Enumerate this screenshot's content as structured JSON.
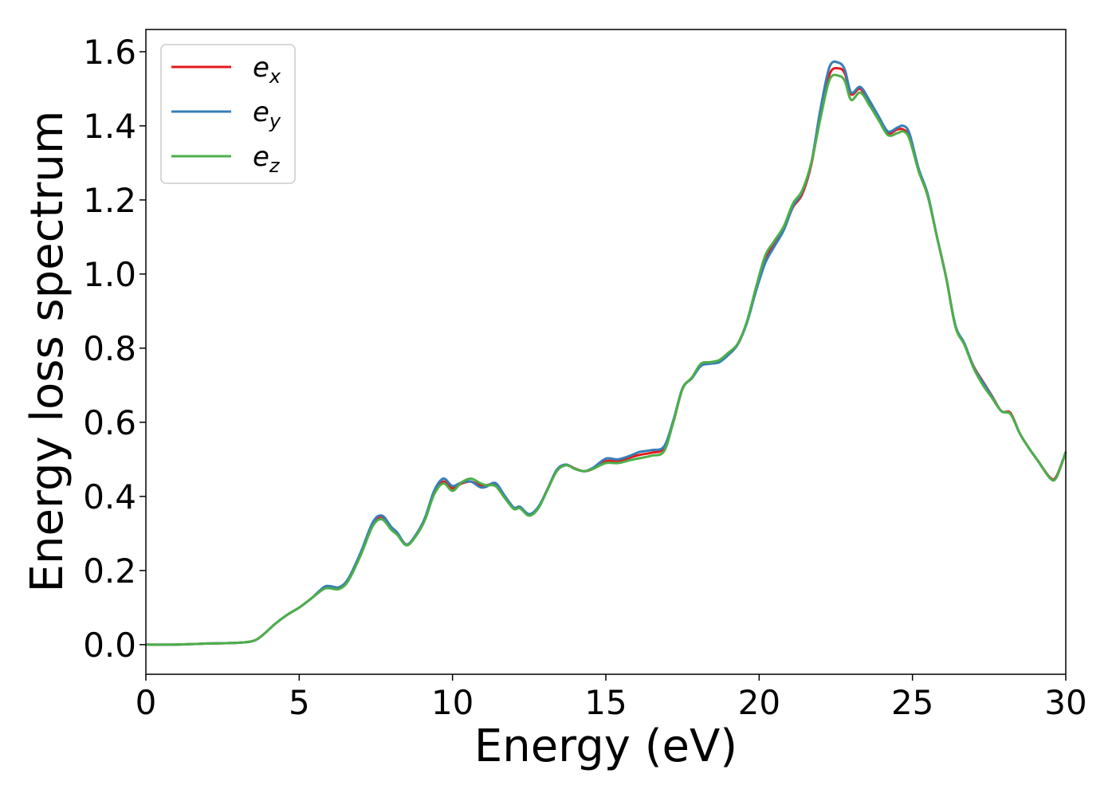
{
  "chart_data": {
    "type": "line",
    "title": "",
    "xlabel": "Energy (eV)",
    "ylabel": "Energy loss spectrum",
    "xlim": [
      0,
      30
    ],
    "ylim": [
      -0.08,
      1.66
    ],
    "xticks": [
      0,
      5,
      10,
      15,
      20,
      25,
      30
    ],
    "xtick_labels": [
      "0",
      "5",
      "10",
      "15",
      "20",
      "25",
      "30"
    ],
    "yticks": [
      0.0,
      0.2,
      0.4,
      0.6,
      0.8,
      1.0,
      1.2,
      1.4,
      1.6
    ],
    "ytick_labels": [
      "0.0",
      "0.2",
      "0.4",
      "0.6",
      "0.8",
      "1.0",
      "1.2",
      "1.4",
      "1.6"
    ],
    "grid": false,
    "legend_position": "top-left",
    "series": [
      {
        "name": "e",
        "subscript": "x",
        "color": "#e41a1c",
        "x": [
          0,
          1,
          2,
          3,
          3.5,
          3.8,
          4.2,
          4.6,
          5.0,
          5.4,
          5.8,
          6.0,
          6.3,
          6.6,
          7.0,
          7.4,
          7.7,
          8.0,
          8.2,
          8.5,
          8.8,
          9.1,
          9.4,
          9.7,
          10.0,
          10.3,
          10.6,
          10.9,
          11.1,
          11.4,
          11.7,
          12.0,
          12.2,
          12.5,
          12.8,
          13.1,
          13.4,
          13.7,
          14.0,
          14.3,
          14.6,
          15.0,
          15.4,
          15.8,
          16.1,
          16.5,
          16.9,
          17.2,
          17.5,
          17.8,
          18.1,
          18.4,
          18.7,
          19.0,
          19.3,
          19.6,
          19.9,
          20.2,
          20.5,
          20.8,
          21.1,
          21.4,
          21.7,
          22.0,
          22.3,
          22.6,
          22.8,
          23.0,
          23.3,
          23.6,
          23.9,
          24.2,
          24.5,
          24.7,
          24.9,
          25.2,
          25.5,
          25.8,
          26.1,
          26.4,
          26.7,
          27.0,
          27.3,
          27.6,
          27.9,
          28.2,
          28.5,
          28.8,
          29.1,
          29.5,
          29.7,
          30.0
        ],
        "y": [
          0.0,
          0.0,
          0.003,
          0.005,
          0.01,
          0.025,
          0.055,
          0.08,
          0.1,
          0.125,
          0.152,
          0.155,
          0.152,
          0.175,
          0.245,
          0.325,
          0.345,
          0.315,
          0.3,
          0.27,
          0.295,
          0.34,
          0.41,
          0.44,
          0.422,
          0.435,
          0.44,
          0.43,
          0.43,
          0.432,
          0.4,
          0.368,
          0.37,
          0.35,
          0.37,
          0.42,
          0.47,
          0.485,
          0.475,
          0.468,
          0.475,
          0.495,
          0.495,
          0.505,
          0.512,
          0.518,
          0.53,
          0.6,
          0.69,
          0.72,
          0.755,
          0.762,
          0.765,
          0.785,
          0.81,
          0.87,
          0.96,
          1.04,
          1.08,
          1.12,
          1.18,
          1.215,
          1.295,
          1.43,
          1.54,
          1.555,
          1.54,
          1.485,
          1.5,
          1.46,
          1.42,
          1.38,
          1.39,
          1.39,
          1.37,
          1.28,
          1.21,
          1.1,
          0.99,
          0.86,
          0.81,
          0.75,
          0.71,
          0.67,
          0.63,
          0.625,
          0.57,
          0.53,
          0.495,
          0.45,
          0.455,
          0.52
        ]
      },
      {
        "name": "e",
        "subscript": "y",
        "color": "#377eb8",
        "x": [
          0,
          1,
          2,
          3,
          3.5,
          3.8,
          4.2,
          4.6,
          5.0,
          5.4,
          5.8,
          6.0,
          6.3,
          6.6,
          7.0,
          7.4,
          7.7,
          8.0,
          8.2,
          8.5,
          8.8,
          9.1,
          9.4,
          9.7,
          10.0,
          10.3,
          10.6,
          10.9,
          11.1,
          11.4,
          11.7,
          12.0,
          12.2,
          12.5,
          12.8,
          13.1,
          13.4,
          13.7,
          14.0,
          14.3,
          14.6,
          15.0,
          15.4,
          15.8,
          16.1,
          16.5,
          16.9,
          17.2,
          17.5,
          17.8,
          18.1,
          18.4,
          18.7,
          19.0,
          19.3,
          19.6,
          19.9,
          20.2,
          20.5,
          20.8,
          21.1,
          21.4,
          21.7,
          22.0,
          22.3,
          22.6,
          22.8,
          23.0,
          23.3,
          23.6,
          23.9,
          24.2,
          24.5,
          24.7,
          24.9,
          25.2,
          25.5,
          25.8,
          26.1,
          26.4,
          26.7,
          27.0,
          27.3,
          27.6,
          27.9,
          28.2,
          28.5,
          28.8,
          29.1,
          29.5,
          29.7,
          30.0
        ],
        "y": [
          0.0,
          0.0,
          0.003,
          0.005,
          0.01,
          0.025,
          0.055,
          0.08,
          0.1,
          0.125,
          0.155,
          0.158,
          0.155,
          0.178,
          0.248,
          0.33,
          0.348,
          0.318,
          0.302,
          0.27,
          0.296,
          0.342,
          0.415,
          0.448,
          0.428,
          0.438,
          0.44,
          0.425,
          0.426,
          0.436,
          0.402,
          0.37,
          0.372,
          0.352,
          0.372,
          0.42,
          0.472,
          0.486,
          0.474,
          0.468,
          0.478,
          0.502,
          0.5,
          0.51,
          0.52,
          0.525,
          0.535,
          0.605,
          0.692,
          0.718,
          0.752,
          0.758,
          0.762,
          0.782,
          0.81,
          0.868,
          0.955,
          1.03,
          1.075,
          1.118,
          1.182,
          1.222,
          1.3,
          1.445,
          1.56,
          1.57,
          1.55,
          1.49,
          1.505,
          1.468,
          1.425,
          1.385,
          1.395,
          1.4,
          1.38,
          1.285,
          1.215,
          1.1,
          0.99,
          0.862,
          0.812,
          0.748,
          0.708,
          0.668,
          0.63,
          0.622,
          0.57,
          0.53,
          0.495,
          0.448,
          0.452,
          0.52
        ]
      },
      {
        "name": "e",
        "subscript": "z",
        "color": "#4daf4a",
        "x": [
          0,
          1,
          2,
          3,
          3.5,
          3.8,
          4.2,
          4.6,
          5.0,
          5.4,
          5.8,
          6.0,
          6.3,
          6.6,
          7.0,
          7.4,
          7.7,
          8.0,
          8.2,
          8.5,
          8.8,
          9.1,
          9.4,
          9.7,
          10.0,
          10.3,
          10.6,
          10.9,
          11.1,
          11.4,
          11.7,
          12.0,
          12.2,
          12.5,
          12.8,
          13.1,
          13.4,
          13.7,
          14.0,
          14.3,
          14.6,
          15.0,
          15.4,
          15.8,
          16.1,
          16.5,
          16.9,
          17.2,
          17.5,
          17.8,
          18.1,
          18.4,
          18.7,
          19.0,
          19.3,
          19.6,
          19.9,
          20.2,
          20.5,
          20.8,
          21.1,
          21.4,
          21.7,
          22.0,
          22.3,
          22.6,
          22.8,
          23.0,
          23.3,
          23.6,
          23.9,
          24.2,
          24.5,
          24.7,
          24.9,
          25.2,
          25.5,
          25.8,
          26.1,
          26.4,
          26.7,
          27.0,
          27.3,
          27.6,
          27.9,
          28.2,
          28.5,
          28.8,
          29.1,
          29.5,
          29.7,
          30.0
        ],
        "y": [
          0.0,
          0.0,
          0.003,
          0.005,
          0.01,
          0.025,
          0.055,
          0.08,
          0.1,
          0.125,
          0.15,
          0.152,
          0.15,
          0.172,
          0.24,
          0.32,
          0.338,
          0.31,
          0.296,
          0.268,
          0.292,
          0.336,
          0.405,
          0.435,
          0.415,
          0.438,
          0.448,
          0.436,
          0.43,
          0.428,
          0.396,
          0.366,
          0.368,
          0.348,
          0.368,
          0.418,
          0.468,
          0.484,
          0.474,
          0.468,
          0.475,
          0.49,
          0.49,
          0.498,
          0.503,
          0.51,
          0.522,
          0.6,
          0.69,
          0.72,
          0.758,
          0.762,
          0.768,
          0.788,
          0.812,
          0.872,
          0.965,
          1.05,
          1.09,
          1.128,
          1.19,
          1.225,
          1.3,
          1.42,
          1.525,
          1.535,
          1.52,
          1.47,
          1.49,
          1.455,
          1.415,
          1.375,
          1.38,
          1.385,
          1.365,
          1.278,
          1.21,
          1.1,
          0.99,
          0.858,
          0.808,
          0.745,
          0.7,
          0.665,
          0.63,
          0.622,
          0.57,
          0.53,
          0.495,
          0.448,
          0.452,
          0.52
        ]
      }
    ]
  }
}
